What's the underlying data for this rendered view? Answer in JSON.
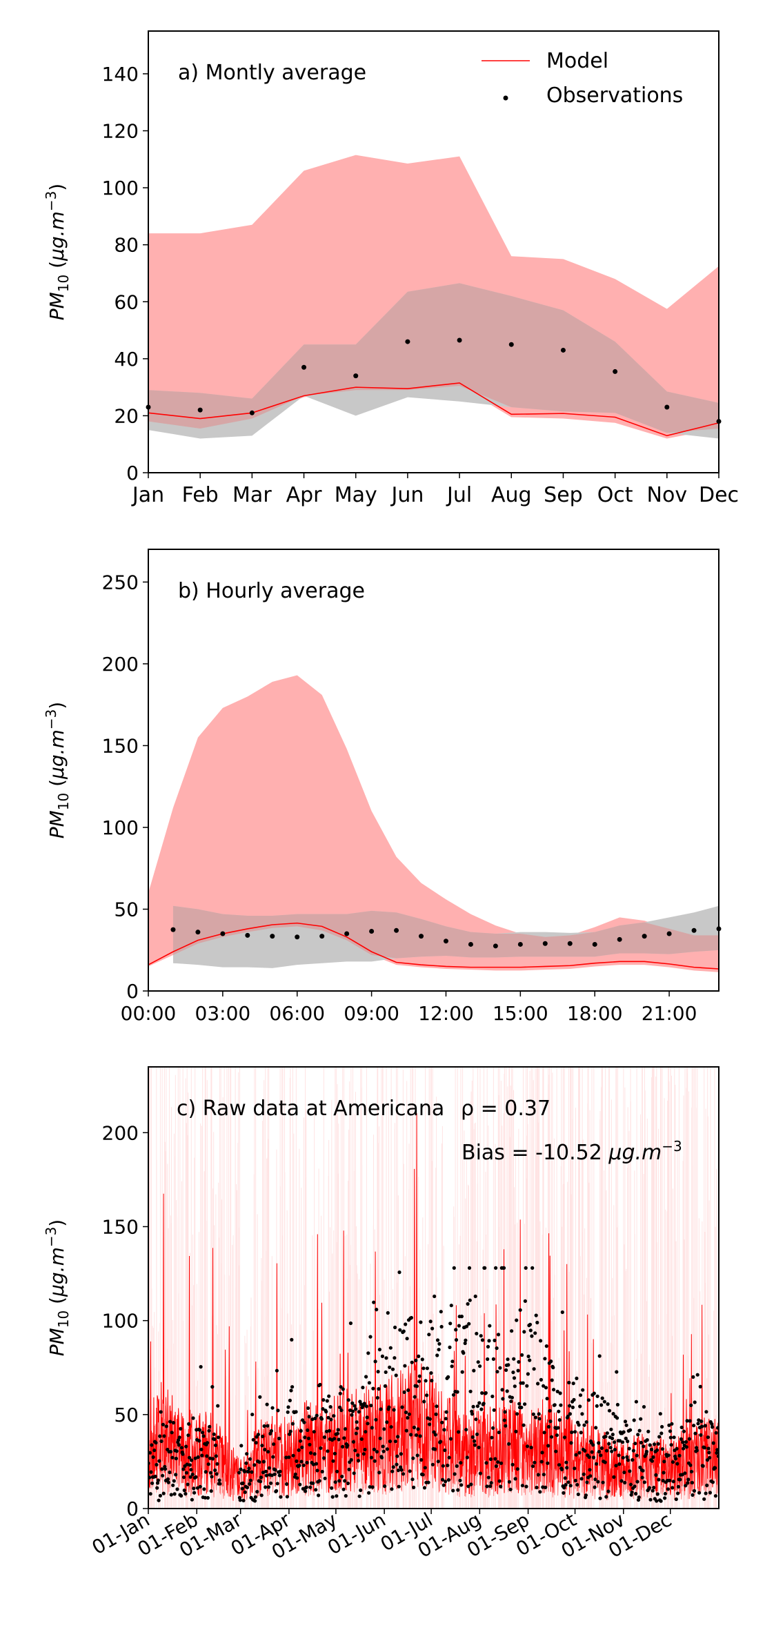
{
  "chart_data": [
    {
      "type": "line",
      "panel_label": "a) Montly average",
      "ylabel": "PM10 (μg.m−3)",
      "ylim": [
        0,
        155
      ],
      "yticks": [
        0,
        20,
        40,
        60,
        80,
        100,
        120,
        140
      ],
      "categories": [
        "Jan",
        "Feb",
        "Mar",
        "Apr",
        "May",
        "Jun",
        "Jul",
        "Aug",
        "Sep",
        "Oct",
        "Nov",
        "Dec"
      ],
      "legend": {
        "placement": "top-right",
        "entries": [
          "Model",
          "Observations"
        ]
      },
      "model_line": [
        21,
        19,
        21,
        27,
        30,
        29.5,
        31.5,
        20.5,
        20.8,
        19.5,
        13,
        17.5
      ],
      "model_range_lower": [
        18,
        15.5,
        19,
        26.5,
        29,
        29,
        30.5,
        19.5,
        19,
        17.5,
        12,
        15.5
      ],
      "model_range_upper": [
        84,
        84,
        87,
        106,
        111.5,
        108.5,
        111,
        76,
        75,
        68,
        57.5,
        72.5
      ],
      "observations": [
        23,
        22,
        21,
        37,
        34,
        46,
        46.5,
        45,
        43,
        35.5,
        23,
        18
      ],
      "obs_range_lower": [
        15,
        12,
        13,
        27,
        20,
        26.5,
        25,
        23,
        21.5,
        21,
        14,
        12
      ],
      "obs_range_upper": [
        29,
        28,
        26,
        45,
        45,
        63.5,
        66.5,
        62,
        57,
        46,
        28.5,
        24.5
      ],
      "colors": {
        "model": "#ff0000",
        "model_band": "#ffb0b0",
        "obs_band": "#c8c8c8",
        "overlap_band": "#d6a6a6"
      }
    },
    {
      "type": "line",
      "panel_label": "b) Hourly average",
      "ylabel": "PM10 (μg.m−3)",
      "ylim": [
        0,
        270
      ],
      "yticks": [
        0,
        50,
        100,
        150,
        200,
        250
      ],
      "xticks": [
        "00:00",
        "03:00",
        "06:00",
        "09:00",
        "12:00",
        "15:00",
        "18:00",
        "21:00"
      ],
      "x": [
        0,
        1,
        2,
        3,
        4,
        5,
        6,
        7,
        8,
        9,
        10,
        11,
        12,
        13,
        14,
        15,
        16,
        17,
        18,
        19,
        20,
        21,
        22,
        23
      ],
      "model_line": [
        16,
        24,
        31,
        35,
        38,
        40.5,
        41.5,
        39.5,
        33,
        24,
        17.5,
        16,
        15,
        14.5,
        14.5,
        14.5,
        15,
        15.5,
        17,
        18,
        18,
        16.5,
        14.5,
        13.5
      ],
      "model_range_lower": [
        15,
        22,
        29,
        33,
        36,
        38.5,
        39.5,
        37,
        31,
        22,
        16,
        14.5,
        13.5,
        13,
        12.5,
        12.5,
        13,
        13.5,
        15,
        16,
        16,
        14.5,
        12.5,
        11.5
      ],
      "model_range_upper": [
        60,
        112,
        155,
        173,
        180,
        189,
        193,
        181,
        148,
        110,
        82,
        66,
        56,
        47,
        40,
        35,
        33,
        34,
        39,
        45,
        43,
        38,
        34,
        34
      ],
      "observations": [
        null,
        37.5,
        36,
        35,
        34,
        33.5,
        33,
        33.5,
        35,
        36.5,
        37,
        33.5,
        30.5,
        28.5,
        27.5,
        28.5,
        29,
        29,
        28.5,
        31.5,
        33.5,
        35,
        37,
        38
      ],
      "obs_range_lower": [
        null,
        17,
        16,
        14.5,
        14.5,
        14,
        16,
        17,
        18,
        18,
        20,
        21,
        21.5,
        20.5,
        20.5,
        21,
        21,
        21,
        21,
        23,
        23,
        22.5,
        24,
        25
      ],
      "obs_range_upper": [
        null,
        52,
        50,
        47,
        46,
        46,
        47,
        47,
        47,
        49,
        48,
        44,
        39.5,
        36,
        35,
        36,
        36,
        35.5,
        36,
        40,
        42,
        45,
        48,
        52
      ],
      "colors": {
        "model": "#ff0000",
        "model_band": "#ffb0b0",
        "obs_band": "#c8c8c8"
      }
    },
    {
      "type": "line",
      "panel_label": "c) Raw data at Americana",
      "stats": [
        "ρ = 0.37",
        "Bias = -10.52 μg.m−3"
      ],
      "ylabel": "PM10 (μg.m−3)",
      "ylim": [
        0,
        235
      ],
      "yticks": [
        0,
        50,
        100,
        150,
        200
      ],
      "xticks": [
        "01-Jan",
        "01-Feb",
        "01-Mar",
        "01-Apr",
        "01-May",
        "01-Jun",
        "01-Jul",
        "01-Aug",
        "01-Sep",
        "01-Oct",
        "01-Nov",
        "01-Dec"
      ],
      "month_start_days": [
        0,
        31,
        59,
        90,
        120,
        151,
        181,
        212,
        243,
        273,
        304,
        334
      ],
      "x_unit": "day of year",
      "xlim": [
        0,
        365
      ],
      "model_envelope": [
        [
          0,
          32
        ],
        [
          10,
          38
        ],
        [
          20,
          30
        ],
        [
          31,
          28
        ],
        [
          40,
          30
        ],
        [
          50,
          22
        ],
        [
          59,
          14
        ],
        [
          70,
          25
        ],
        [
          80,
          28
        ],
        [
          90,
          26
        ],
        [
          100,
          32
        ],
        [
          110,
          30
        ],
        [
          120,
          33
        ],
        [
          130,
          36
        ],
        [
          140,
          38
        ],
        [
          151,
          36
        ],
        [
          160,
          42
        ],
        [
          170,
          44
        ],
        [
          181,
          40
        ],
        [
          190,
          34
        ],
        [
          200,
          30
        ],
        [
          212,
          28
        ],
        [
          222,
          30
        ],
        [
          232,
          32
        ],
        [
          243,
          30
        ],
        [
          253,
          32
        ],
        [
          263,
          28
        ],
        [
          273,
          26
        ],
        [
          283,
          24
        ],
        [
          293,
          22
        ],
        [
          304,
          20
        ],
        [
          314,
          22
        ],
        [
          324,
          20
        ],
        [
          334,
          22
        ],
        [
          345,
          24
        ],
        [
          355,
          26
        ],
        [
          365,
          28
        ]
      ],
      "observation_envelope": [
        [
          0,
          25
        ],
        [
          10,
          30
        ],
        [
          20,
          28
        ],
        [
          31,
          30
        ],
        [
          40,
          35
        ],
        [
          50,
          20
        ],
        [
          59,
          15
        ],
        [
          70,
          25
        ],
        [
          80,
          30
        ],
        [
          90,
          40
        ],
        [
          100,
          38
        ],
        [
          110,
          35
        ],
        [
          120,
          40
        ],
        [
          130,
          42
        ],
        [
          140,
          45
        ],
        [
          151,
          55
        ],
        [
          160,
          60
        ],
        [
          170,
          62
        ],
        [
          181,
          58
        ],
        [
          190,
          60
        ],
        [
          200,
          65
        ],
        [
          212,
          62
        ],
        [
          222,
          60
        ],
        [
          232,
          65
        ],
        [
          243,
          68
        ],
        [
          253,
          55
        ],
        [
          263,
          45
        ],
        [
          273,
          40
        ],
        [
          283,
          38
        ],
        [
          293,
          35
        ],
        [
          304,
          28
        ],
        [
          314,
          30
        ],
        [
          324,
          25
        ],
        [
          334,
          28
        ],
        [
          345,
          30
        ],
        [
          355,
          30
        ],
        [
          365,
          32
        ]
      ],
      "colors": {
        "model": "#ff0000",
        "model_band": "#ffcccc",
        "observations": "#000000"
      }
    }
  ]
}
